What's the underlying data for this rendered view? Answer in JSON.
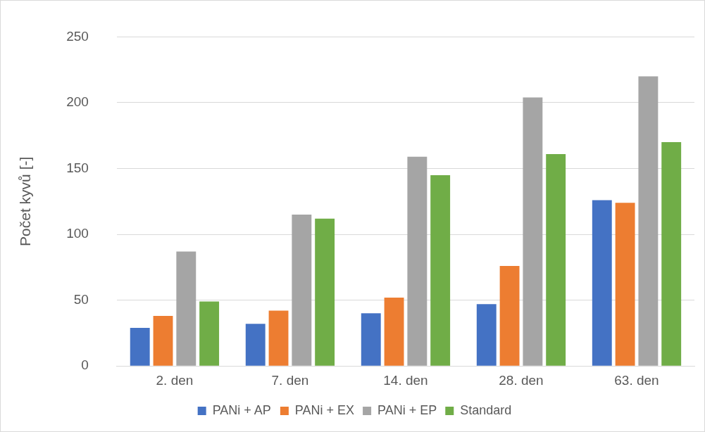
{
  "chart_data": {
    "type": "bar",
    "ylabel": "Počet kyvů [-]",
    "categories": [
      "2. den",
      "7. den",
      "14. den",
      "28. den",
      "63. den"
    ],
    "series": [
      {
        "name": "PANi + AP",
        "color": "#4472c4",
        "values": [
          29,
          32,
          40,
          47,
          126
        ]
      },
      {
        "name": "PANi + EX",
        "color": "#ed7d31",
        "values": [
          38,
          42,
          52,
          76,
          124
        ]
      },
      {
        "name": "PANi + EP",
        "color": "#a5a5a5",
        "values": [
          87,
          115,
          159,
          204,
          220
        ]
      },
      {
        "name": "Standard",
        "color": "#70ad47",
        "values": [
          49,
          112,
          145,
          161,
          170
        ]
      }
    ],
    "ylim": [
      0,
      250
    ],
    "yticks": [
      0,
      50,
      100,
      150,
      200,
      250
    ],
    "grid": "y",
    "legend": "bottom"
  }
}
